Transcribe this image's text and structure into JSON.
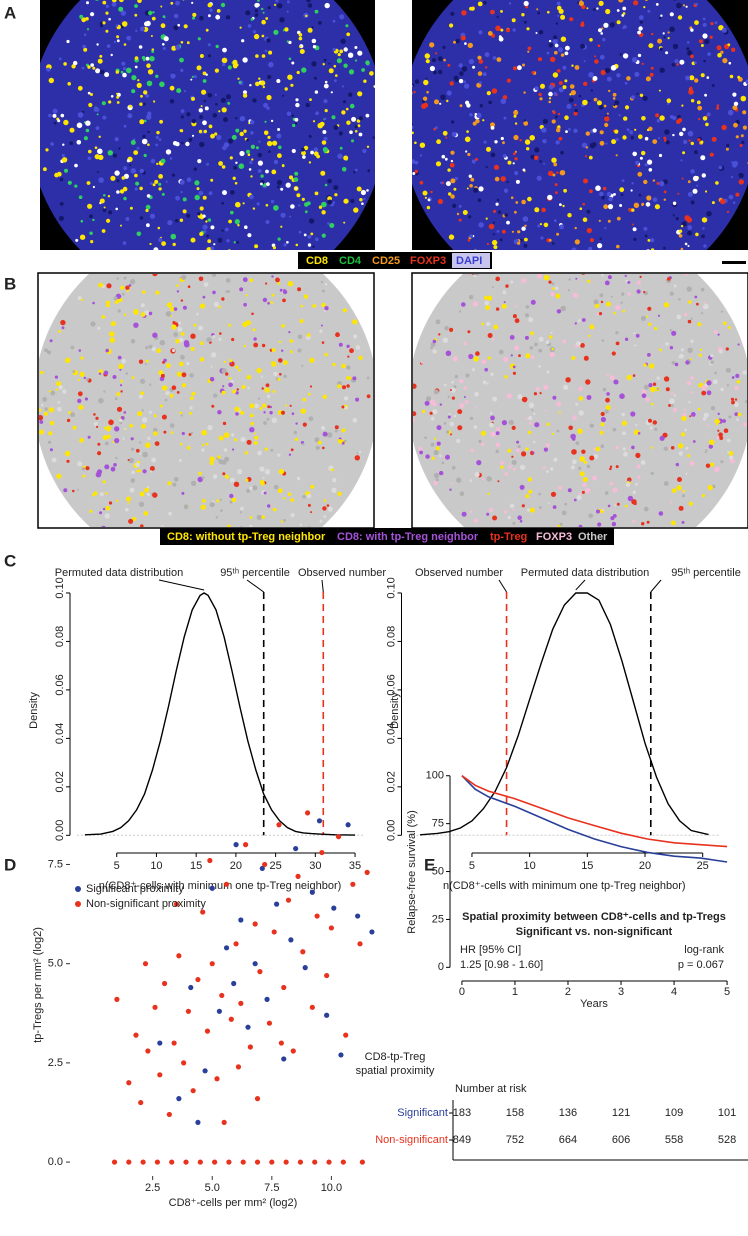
{
  "panels": {
    "A": {
      "label": "A",
      "legend": [
        "CD8",
        "CD4",
        "CD25",
        "FOXP3",
        "DAPI"
      ]
    },
    "B": {
      "label": "B",
      "legend": [
        "CD8: without tp-Treg neighbor",
        "CD8: with tp-Treg neighbor",
        "tp-Treg",
        "FOXP3",
        "Other"
      ]
    },
    "C": {
      "label": "C"
    },
    "D": {
      "label": "D"
    },
    "E": {
      "label": "E"
    }
  },
  "chart_data": [
    {
      "type": "line",
      "ylabel": "Density",
      "xlabel": "n(CD8⁺-cells with minimum one tp-Treg neighbor)",
      "color": "#000000",
      "annotation": "Permuted data distribution",
      "x": [
        1,
        3,
        4.5,
        5.5,
        6.5,
        7.5,
        8.5,
        9.5,
        10.5,
        11.5,
        12.5,
        13.5,
        14.5,
        15.5,
        16,
        16.5,
        17.5,
        18.5,
        19.5,
        20.5,
        21.5,
        22.5,
        23.5,
        24.5,
        25.5,
        26.5,
        27.5,
        28.5,
        29.5,
        30.5,
        32.5,
        35
      ],
      "values": [
        0.0002,
        0.0005,
        0.0016,
        0.0032,
        0.006,
        0.0105,
        0.017,
        0.027,
        0.039,
        0.053,
        0.068,
        0.082,
        0.093,
        0.099,
        0.1,
        0.099,
        0.093,
        0.082,
        0.068,
        0.053,
        0.039,
        0.027,
        0.017,
        0.0105,
        0.006,
        0.0032,
        0.0016,
        0.001,
        0.0007,
        0.0005,
        0.0002,
        0.0001
      ],
      "ref_lines": [
        {
          "value": 23.5,
          "label": "95ᵗʰ percentile",
          "color": "#000000"
        },
        {
          "value": 31,
          "label": "Observed number",
          "color": "#e8321e"
        }
      ],
      "xlim": [
        0,
        36
      ],
      "ylim": [
        -0.004,
        0.107
      ],
      "xticks": [
        5,
        10,
        15,
        20,
        25,
        30,
        35
      ],
      "yticks": [
        {
          "value": 0,
          "label": "0.00"
        },
        {
          "value": 0.02,
          "label": "0.02"
        },
        {
          "value": 0.04,
          "label": "0.04"
        },
        {
          "value": 0.06,
          "label": "0.06"
        },
        {
          "value": 0.08,
          "label": "0.08"
        },
        {
          "value": 0.1,
          "label": "0.10"
        }
      ]
    },
    {
      "type": "line",
      "ylabel": "Density",
      "xlabel": "n(CD8⁺-cells with minimum one tp-Treg neighbor)",
      "color": "#000000",
      "annotation": "Permuted data distribution",
      "x": [
        0.5,
        2,
        3,
        4,
        5,
        6,
        7,
        8,
        9,
        10,
        11,
        12,
        13,
        14,
        15,
        16,
        17,
        18,
        19,
        20,
        21,
        22,
        23,
        24,
        25.5
      ],
      "values": [
        0.0002,
        0.0008,
        0.0015,
        0.003,
        0.006,
        0.011,
        0.018,
        0.028,
        0.041,
        0.056,
        0.071,
        0.085,
        0.095,
        0.1,
        0.1,
        0.097,
        0.087,
        0.072,
        0.055,
        0.038,
        0.024,
        0.013,
        0.006,
        0.002,
        0.0003
      ],
      "ref_lines": [
        {
          "value": 8,
          "label": "Observed number",
          "color": "#e8321e"
        },
        {
          "value": 20.5,
          "label": "95ᵗʰ percentile",
          "color": "#000000"
        }
      ],
      "xlim": [
        -0.5,
        26.5
      ],
      "ylim": [
        -0.004,
        0.107
      ],
      "xticks": [
        5,
        10,
        15,
        20,
        25
      ],
      "yticks": [
        {
          "value": 0,
          "label": "0.00"
        },
        {
          "value": 0.02,
          "label": "0.02"
        },
        {
          "value": 0.04,
          "label": "0.04"
        },
        {
          "value": 0.06,
          "label": "0.06"
        },
        {
          "value": 0.08,
          "label": "0.08"
        },
        {
          "value": 0.1,
          "label": "0.10"
        }
      ]
    },
    {
      "type": "scatter",
      "xlabel": "CD8⁺-cells per mm² (log2)",
      "ylabel": "tp-Tregs per mm² (log2)",
      "xlim": [
        -0.8,
        12.5
      ],
      "ylim": [
        -0.3,
        9.2
      ],
      "xticks": [
        2.5,
        {
          "value": 5,
          "label": "5.0"
        },
        7.5,
        {
          "value": 10,
          "label": "10.0"
        }
      ],
      "yticks": [
        {
          "value": 0,
          "label": "0.0"
        },
        2.5,
        {
          "value": 5,
          "label": "5.0"
        },
        7.5
      ],
      "series": [
        {
          "name": "Significant proximity",
          "color": "#2a3f99",
          "x": [
            2.8,
            3.6,
            4.1,
            4.7,
            5.0,
            5.3,
            5.6,
            5.9,
            6.2,
            6.5,
            6.8,
            7.1,
            7.3,
            7.7,
            8.0,
            8.3,
            8.5,
            8.9,
            9.2,
            9.5,
            9.8,
            10.1,
            10.4,
            10.7,
            11.1,
            11.7,
            6.0,
            4.4
          ],
          "values": [
            3.0,
            1.6,
            4.4,
            2.3,
            6.9,
            3.8,
            5.4,
            4.5,
            6.1,
            3.4,
            5.0,
            7.4,
            4.1,
            6.5,
            2.6,
            5.6,
            7.9,
            4.9,
            6.8,
            8.6,
            3.7,
            6.4,
            2.7,
            8.5,
            6.2,
            5.8,
            8.0,
            1.0
          ]
        },
        {
          "name": "Non-significant proximity",
          "color": "#e8321e",
          "x": [
            1.0,
            1.5,
            1.8,
            2.0,
            2.3,
            2.6,
            2.8,
            3.0,
            3.2,
            3.4,
            3.6,
            3.8,
            4.0,
            4.2,
            4.4,
            4.6,
            4.8,
            5.0,
            5.2,
            5.4,
            5.6,
            5.8,
            6.0,
            6.2,
            6.4,
            6.6,
            6.8,
            7.0,
            7.2,
            7.4,
            7.6,
            7.8,
            8.0,
            8.2,
            8.4,
            8.6,
            8.8,
            9.0,
            9.2,
            9.4,
            9.6,
            9.8,
            10.0,
            10.3,
            10.6,
            10.9,
            11.2,
            11.5,
            5.5,
            6.9,
            3.5,
            4.9,
            6.1,
            7.9,
            2.2,
            0.9,
            1.5,
            2.1,
            2.7,
            3.3,
            3.9,
            4.5,
            5.1,
            5.7,
            6.3,
            6.9,
            7.5,
            8.1,
            8.7,
            9.3,
            9.9,
            10.5,
            11.3
          ],
          "values": [
            4.1,
            2.0,
            3.2,
            1.5,
            2.8,
            3.9,
            2.2,
            4.5,
            1.2,
            3.0,
            5.2,
            2.5,
            3.8,
            1.8,
            4.6,
            6.3,
            3.3,
            5.0,
            2.1,
            4.2,
            7.0,
            3.6,
            5.5,
            4.0,
            8.0,
            2.9,
            6.0,
            4.8,
            7.5,
            3.5,
            5.8,
            8.5,
            4.4,
            6.6,
            2.8,
            7.2,
            5.3,
            8.8,
            3.9,
            6.2,
            7.8,
            4.7,
            5.9,
            8.2,
            3.2,
            7.0,
            5.5,
            7.3,
            1.0,
            1.6,
            6.5,
            7.6,
            2.4,
            3.0,
            5.0,
            0,
            0,
            0,
            0,
            0,
            0,
            0,
            0,
            0,
            0,
            0,
            0,
            0,
            0,
            0,
            0,
            0,
            0
          ]
        }
      ]
    },
    {
      "type": "line",
      "ylabel": "Relapse-free survival (%)",
      "xlabel": "Years",
      "title": "Spatial proximity between CD8⁺-cells and tp-Tregs",
      "subtitle": "Significant vs. non-significant",
      "hr_label": "HR [95% CI]",
      "hr_value": "1.25 [0.98 - 1.60]",
      "test_label": "log-rank",
      "test_value": "p = 0.067",
      "risk_title": [
        "CD8-tp-Treg",
        "spatial proximity"
      ],
      "risk_header": "Number at risk",
      "xlim": [
        -0.3,
        5.3
      ],
      "ylim": [
        -4,
        103
      ],
      "xticks": [
        0,
        1,
        2,
        3,
        4,
        5
      ],
      "yticks": [
        0,
        25,
        50,
        75,
        100
      ],
      "x": [
        0,
        0.25,
        0.5,
        1,
        1.5,
        2,
        2.5,
        3,
        3.5,
        4,
        4.5,
        5
      ],
      "series": [
        {
          "name": "Significant",
          "color": "#2a3f99",
          "values": [
            100,
            93,
            89,
            84,
            78,
            72,
            67,
            63,
            60,
            58,
            57,
            55
          ],
          "at_risk": [
            183,
            158,
            136,
            121,
            109,
            101
          ]
        },
        {
          "name": "Non-significant",
          "color": "#e8321e",
          "values": [
            100,
            95,
            92,
            88,
            83,
            78,
            74,
            70,
            67,
            65,
            64,
            63
          ],
          "at_risk": [
            849,
            752,
            664,
            606,
            558,
            528
          ]
        }
      ]
    }
  ]
}
